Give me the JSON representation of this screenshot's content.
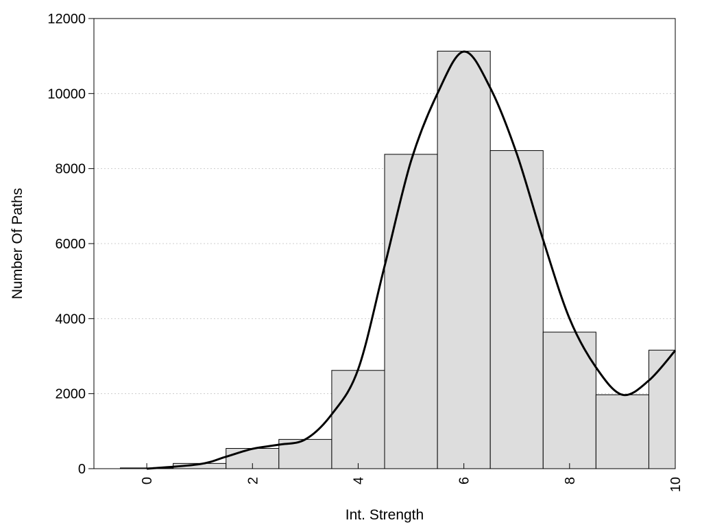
{
  "chart_data": {
    "type": "bar",
    "title": "",
    "xlabel": "Int. Strength",
    "ylabel": "Number Of Paths",
    "xlim": [
      -1,
      10
    ],
    "ylim": [
      0,
      12000
    ],
    "x_ticks": [
      0,
      2,
      4,
      6,
      8,
      10
    ],
    "y_ticks": [
      0,
      2000,
      4000,
      6000,
      8000,
      10000,
      12000
    ],
    "grid": "horizontal dotted",
    "legend": "none",
    "bin_width": 1,
    "bins": [
      0,
      1,
      2,
      3,
      4,
      5,
      6,
      7,
      8,
      9,
      10
    ],
    "values": [
      20,
      140,
      540,
      780,
      2620,
      8380,
      11130,
      8480,
      3640,
      1970,
      3160
    ],
    "density_curve": {
      "x": [
        0,
        1,
        1.5,
        2,
        2.5,
        3,
        3.5,
        4,
        4.5,
        5,
        5.5,
        6,
        6.5,
        7,
        7.5,
        8,
        8.5,
        9,
        9.5,
        10
      ],
      "y": [
        0,
        120,
        320,
        530,
        640,
        780,
        1450,
        2650,
        5400,
        8200,
        10000,
        11120,
        10150,
        8400,
        6100,
        4000,
        2700,
        1970,
        2350,
        3150
      ]
    },
    "colors": {
      "bar_fill": "#dddddd",
      "bar_stroke": "#000000",
      "curve": "#000000",
      "grid": "#cccccc"
    }
  }
}
